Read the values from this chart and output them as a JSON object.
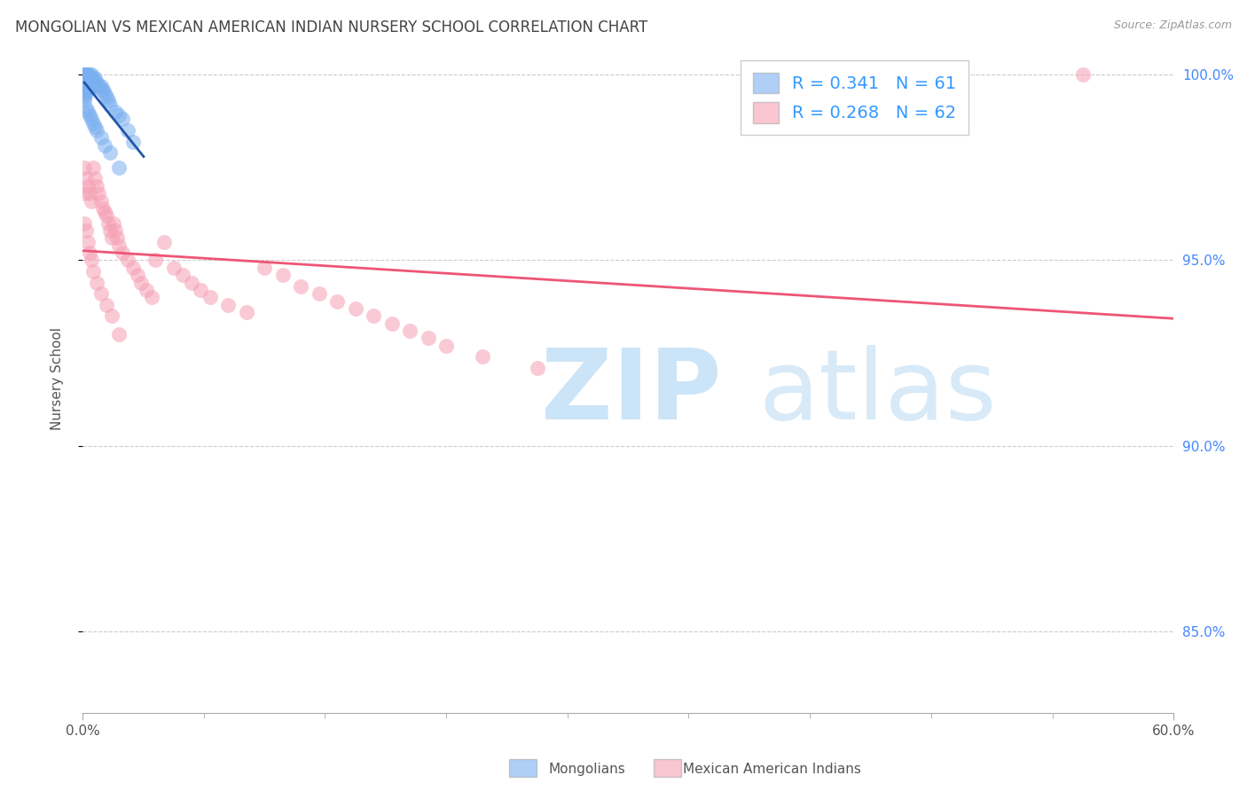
{
  "title": "MONGOLIAN VS MEXICAN AMERICAN INDIAN NURSERY SCHOOL CORRELATION CHART",
  "source": "Source: ZipAtlas.com",
  "ylabel": "Nursery School",
  "legend_label1": "Mongolians",
  "legend_label2": "Mexican American Indians",
  "mongolian_color": "#7aaff0",
  "mexican_color": "#f5a0b5",
  "trendline_mongolian": "#2255aa",
  "trendline_mexican": "#ee5577",
  "xlim": [
    0.0,
    0.6
  ],
  "ylim": [
    0.828,
    1.008
  ],
  "y_ticks": [
    0.85,
    0.9,
    0.95,
    1.0
  ],
  "y_tick_labels": [
    "85.0%",
    "90.0%",
    "95.0%",
    "100.0%"
  ],
  "mong_x": [
    0.001,
    0.001,
    0.001,
    0.001,
    0.001,
    0.001,
    0.001,
    0.001,
    0.001,
    0.001,
    0.002,
    0.002,
    0.002,
    0.002,
    0.002,
    0.002,
    0.002,
    0.003,
    0.003,
    0.003,
    0.003,
    0.003,
    0.004,
    0.004,
    0.004,
    0.004,
    0.005,
    0.005,
    0.005,
    0.006,
    0.006,
    0.006,
    0.007,
    0.007,
    0.008,
    0.008,
    0.009,
    0.01,
    0.01,
    0.011,
    0.012,
    0.013,
    0.014,
    0.015,
    0.018,
    0.02,
    0.022,
    0.025,
    0.028,
    0.001,
    0.002,
    0.003,
    0.004,
    0.005,
    0.006,
    0.007,
    0.008,
    0.01,
    0.012,
    0.015,
    0.02
  ],
  "mong_y": [
    1.0,
    1.0,
    1.0,
    1.0,
    0.999,
    0.998,
    0.997,
    0.996,
    0.995,
    0.994,
    1.0,
    1.0,
    0.999,
    0.998,
    0.997,
    0.996,
    0.995,
    1.0,
    0.999,
    0.998,
    0.997,
    0.996,
    1.0,
    0.999,
    0.998,
    0.997,
    1.0,
    0.999,
    0.998,
    0.999,
    0.998,
    0.997,
    0.999,
    0.998,
    0.998,
    0.997,
    0.997,
    0.997,
    0.996,
    0.996,
    0.995,
    0.994,
    0.993,
    0.992,
    0.99,
    0.989,
    0.988,
    0.985,
    0.982,
    0.993,
    0.991,
    0.99,
    0.989,
    0.988,
    0.987,
    0.986,
    0.985,
    0.983,
    0.981,
    0.979,
    0.975
  ],
  "mex_x": [
    0.001,
    0.001,
    0.002,
    0.003,
    0.004,
    0.005,
    0.006,
    0.007,
    0.008,
    0.009,
    0.01,
    0.011,
    0.012,
    0.013,
    0.014,
    0.015,
    0.016,
    0.017,
    0.018,
    0.019,
    0.02,
    0.022,
    0.025,
    0.028,
    0.03,
    0.032,
    0.035,
    0.038,
    0.04,
    0.045,
    0.05,
    0.055,
    0.06,
    0.065,
    0.07,
    0.08,
    0.09,
    0.1,
    0.11,
    0.12,
    0.13,
    0.14,
    0.15,
    0.16,
    0.17,
    0.18,
    0.19,
    0.2,
    0.22,
    0.25,
    0.001,
    0.002,
    0.003,
    0.004,
    0.005,
    0.006,
    0.008,
    0.01,
    0.013,
    0.016,
    0.02,
    0.55
  ],
  "mex_y": [
    0.975,
    0.968,
    0.972,
    0.97,
    0.968,
    0.966,
    0.975,
    0.972,
    0.97,
    0.968,
    0.966,
    0.964,
    0.963,
    0.962,
    0.96,
    0.958,
    0.956,
    0.96,
    0.958,
    0.956,
    0.954,
    0.952,
    0.95,
    0.948,
    0.946,
    0.944,
    0.942,
    0.94,
    0.95,
    0.955,
    0.948,
    0.946,
    0.944,
    0.942,
    0.94,
    0.938,
    0.936,
    0.948,
    0.946,
    0.943,
    0.941,
    0.939,
    0.937,
    0.935,
    0.933,
    0.931,
    0.929,
    0.927,
    0.924,
    0.921,
    0.96,
    0.958,
    0.955,
    0.952,
    0.95,
    0.947,
    0.944,
    0.941,
    0.938,
    0.935,
    0.93,
    1.0
  ]
}
